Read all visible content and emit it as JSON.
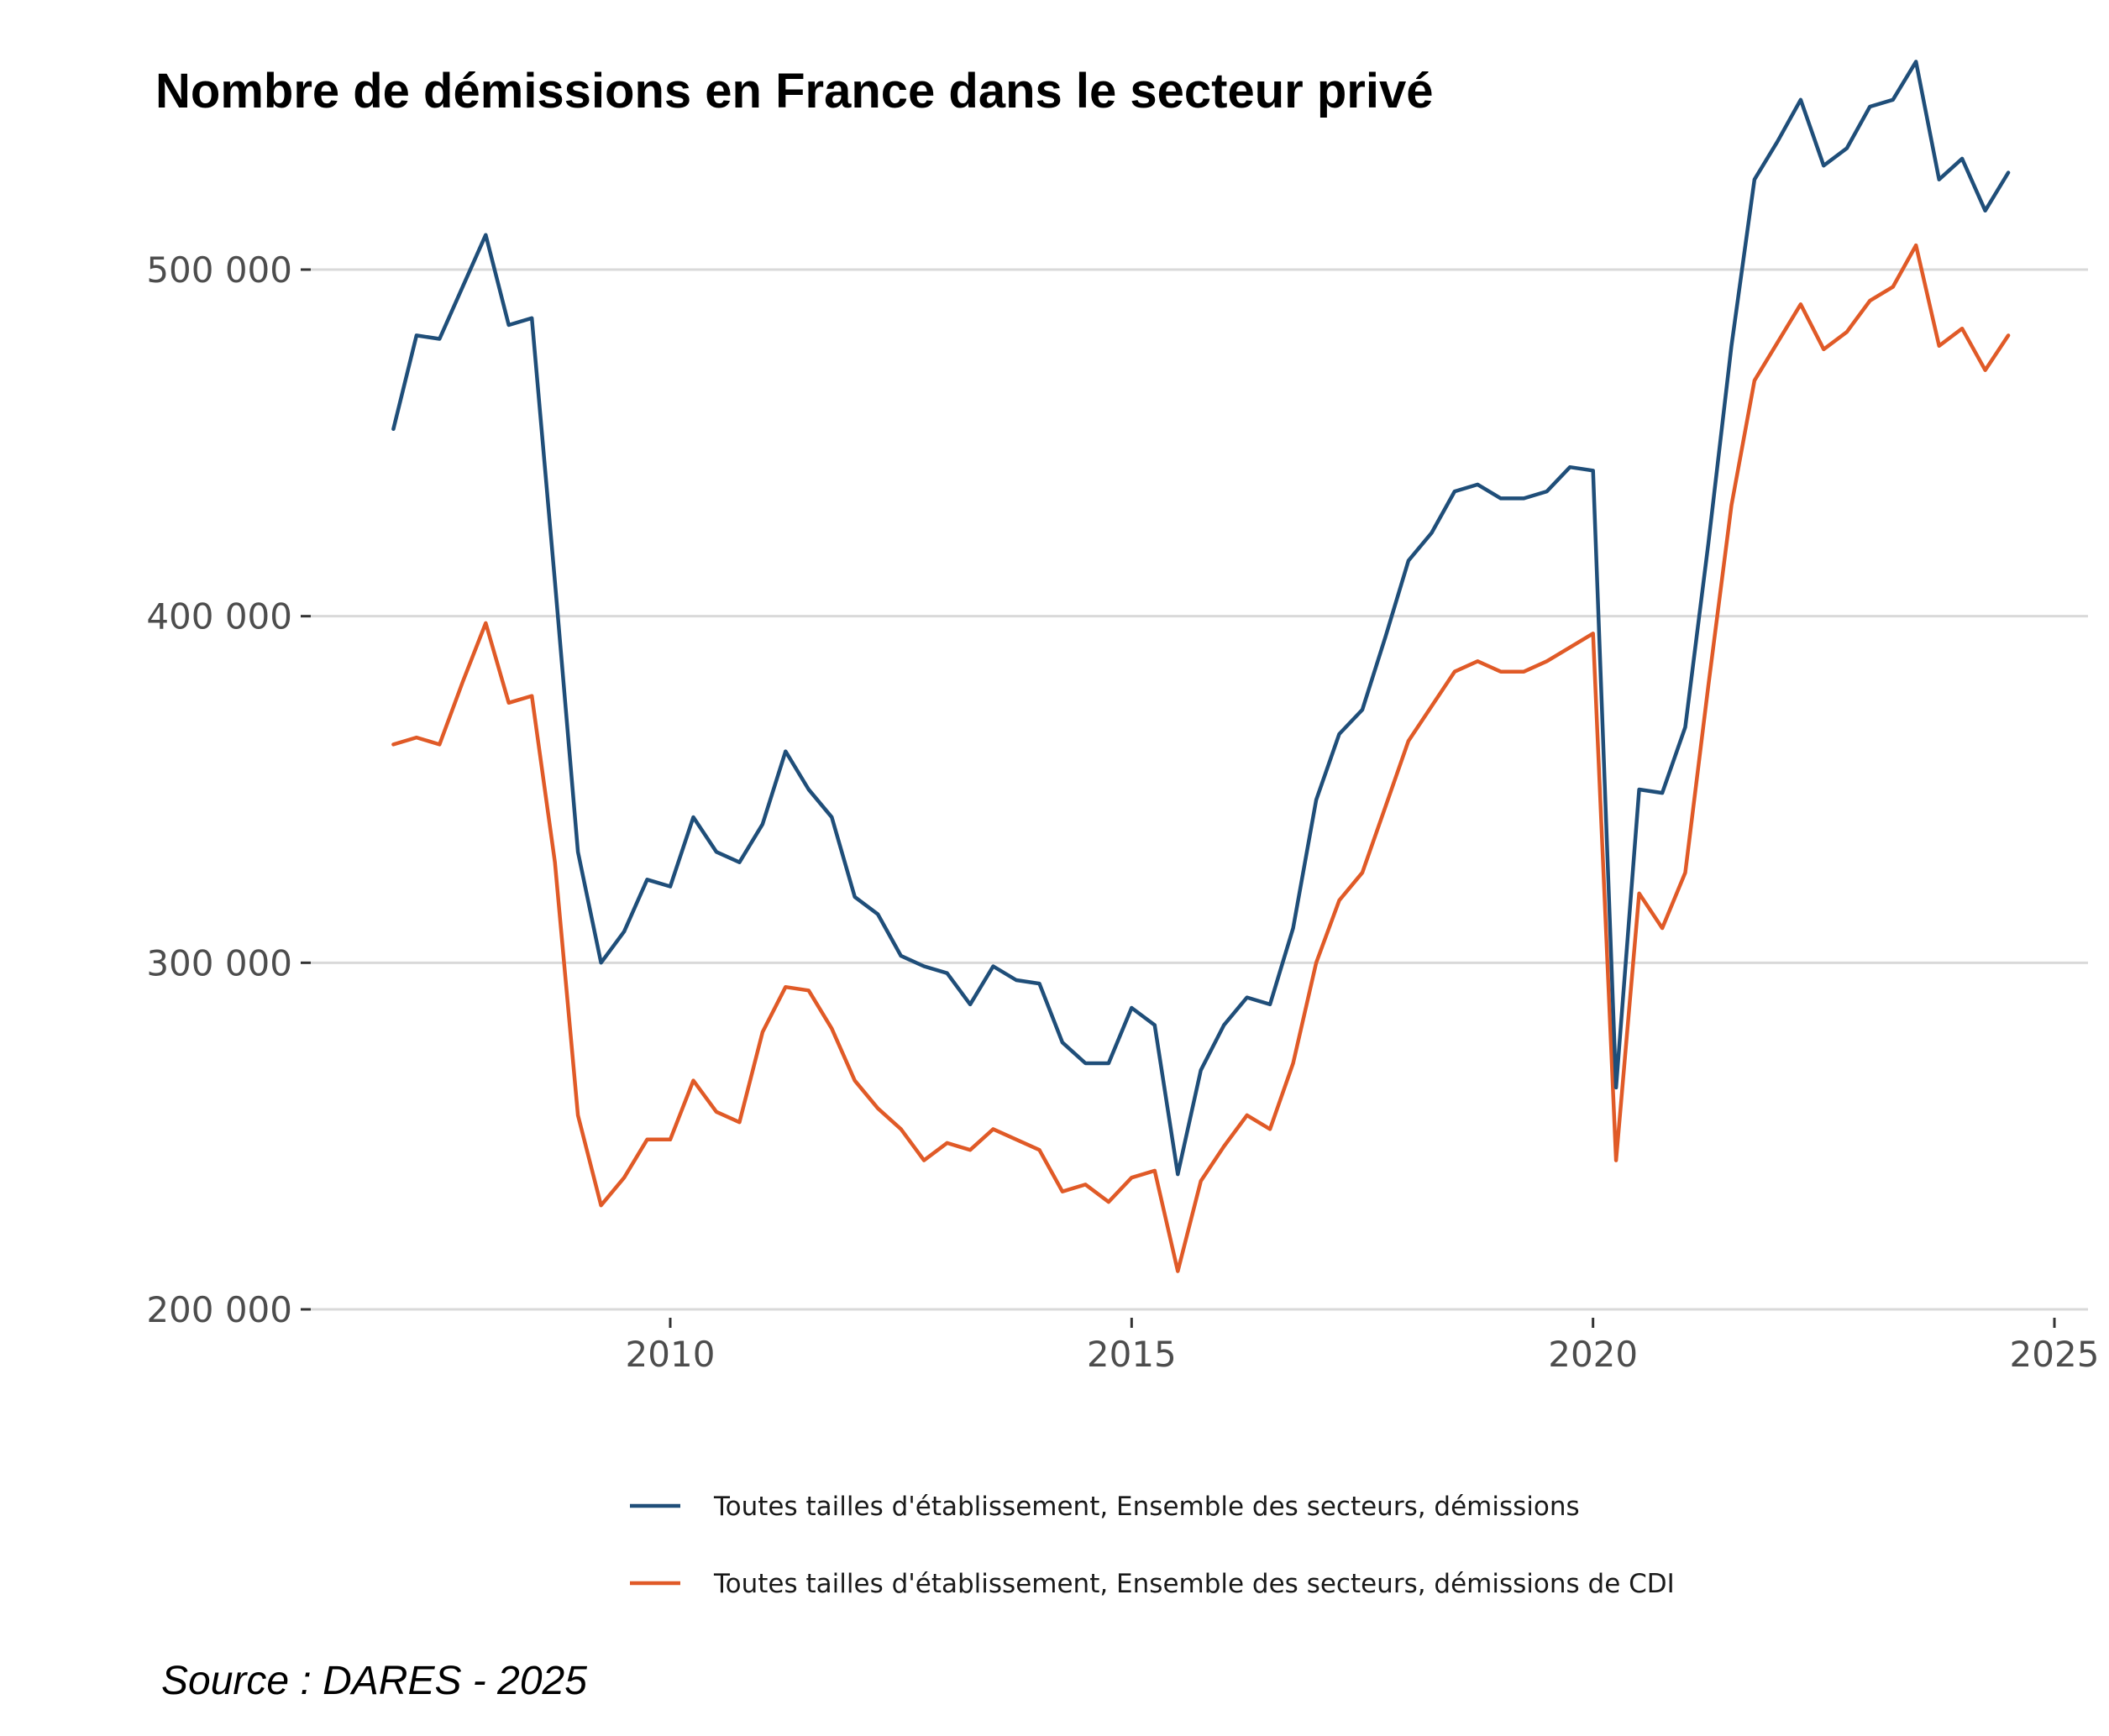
{
  "chart_data": {
    "type": "line",
    "title": "Nombre de démissions en France dans le secteur privé",
    "source": "Source : DARES - 2025",
    "xlabel": "",
    "ylabel": "",
    "xlim": [
      2007,
      2025
    ],
    "ylim": [
      200000,
      540000
    ],
    "grid": true,
    "legend_position": "bottom",
    "x_ticks": [
      {
        "value": 2010,
        "label": "2010"
      },
      {
        "value": 2015,
        "label": "2015"
      },
      {
        "value": 2020,
        "label": "2020"
      },
      {
        "value": 2025,
        "label": "2025"
      }
    ],
    "y_ticks": [
      {
        "value": 200000,
        "label": "200 000"
      },
      {
        "value": 300000,
        "label": "300 000"
      },
      {
        "value": 400000,
        "label": "400 000"
      },
      {
        "value": 500000,
        "label": "500 000"
      }
    ],
    "x": [
      2007.0,
      2007.25,
      2007.5,
      2007.75,
      2008.0,
      2008.25,
      2008.5,
      2008.75,
      2009.0,
      2009.25,
      2009.5,
      2009.75,
      2010.0,
      2010.25,
      2010.5,
      2010.75,
      2011.0,
      2011.25,
      2011.5,
      2011.75,
      2012.0,
      2012.25,
      2012.5,
      2012.75,
      2013.0,
      2013.25,
      2013.5,
      2013.75,
      2014.0,
      2014.25,
      2014.5,
      2014.75,
      2015.0,
      2015.25,
      2015.5,
      2015.75,
      2016.0,
      2016.25,
      2016.5,
      2016.75,
      2017.0,
      2017.25,
      2017.5,
      2017.75,
      2018.0,
      2018.25,
      2018.5,
      2018.75,
      2019.0,
      2019.25,
      2019.5,
      2019.75,
      2020.0,
      2020.25,
      2020.5,
      2020.75,
      2021.0,
      2021.25,
      2021.5,
      2021.75,
      2022.0,
      2022.25,
      2022.5,
      2022.75,
      2023.0,
      2023.25,
      2023.5,
      2023.75,
      2024.0,
      2024.25,
      2024.5
    ],
    "series": [
      {
        "name": "Toutes tailles d'établissement, Ensemble des secteurs, démissions",
        "color": "#1f4e79",
        "values": [
          454000,
          481000,
          480000,
          495000,
          510000,
          484000,
          486000,
          410000,
          332000,
          300000,
          309000,
          324000,
          322000,
          342000,
          332000,
          329000,
          340000,
          361000,
          350000,
          342000,
          319000,
          314000,
          302000,
          299000,
          297000,
          288000,
          299000,
          295000,
          294000,
          277000,
          271000,
          271000,
          287000,
          282000,
          239000,
          269000,
          282000,
          290000,
          288000,
          310000,
          347000,
          366000,
          373000,
          394000,
          416000,
          424000,
          436000,
          438000,
          434000,
          434000,
          436000,
          443000,
          442000,
          264000,
          350000,
          349000,
          368000,
          421000,
          478000,
          526000,
          537000,
          549000,
          530000,
          535000,
          547000,
          549000,
          560000,
          526000,
          532000,
          517000,
          528000
        ]
      },
      {
        "name": "Toutes tailles d'établissement, Ensemble des secteurs, démissions de CDI",
        "color": "#e05a27",
        "values": [
          363000,
          365000,
          363000,
          381000,
          398000,
          375000,
          377000,
          329000,
          256000,
          230000,
          238000,
          249000,
          249000,
          266000,
          257000,
          254000,
          280000,
          293000,
          292000,
          281000,
          266000,
          258000,
          252000,
          243000,
          248000,
          246000,
          252000,
          249000,
          246000,
          234000,
          236000,
          231000,
          238000,
          240000,
          211000,
          237000,
          247000,
          256000,
          252000,
          271000,
          300000,
          318000,
          326000,
          345000,
          364000,
          374000,
          384000,
          387000,
          384000,
          384000,
          387000,
          391000,
          395000,
          243000,
          320000,
          310000,
          326000,
          380000,
          432000,
          468000,
          479000,
          490000,
          477000,
          482000,
          491000,
          495000,
          507000,
          478000,
          483000,
          471000,
          481000
        ]
      }
    ]
  }
}
